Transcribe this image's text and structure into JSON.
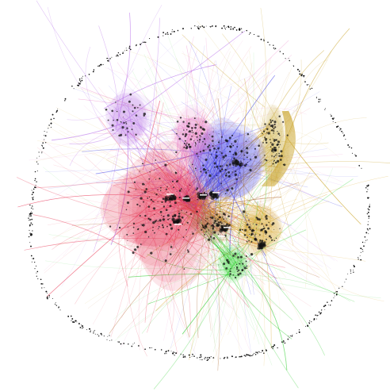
{
  "figure": {
    "kind": "force-directed network graph",
    "background": "#ffffff",
    "node_color": "#111111",
    "hub_label_color": "#ffffff",
    "communities": [
      {
        "color": "#e8304f"
      },
      {
        "color": "#3a3ae8"
      },
      {
        "color": "#d9a21a"
      },
      {
        "color": "#c8a020"
      },
      {
        "color": "#2fd02f"
      },
      {
        "color": "#b060e8"
      },
      {
        "color": "#e870c0"
      },
      {
        "color": "#b06a30"
      }
    ]
  }
}
